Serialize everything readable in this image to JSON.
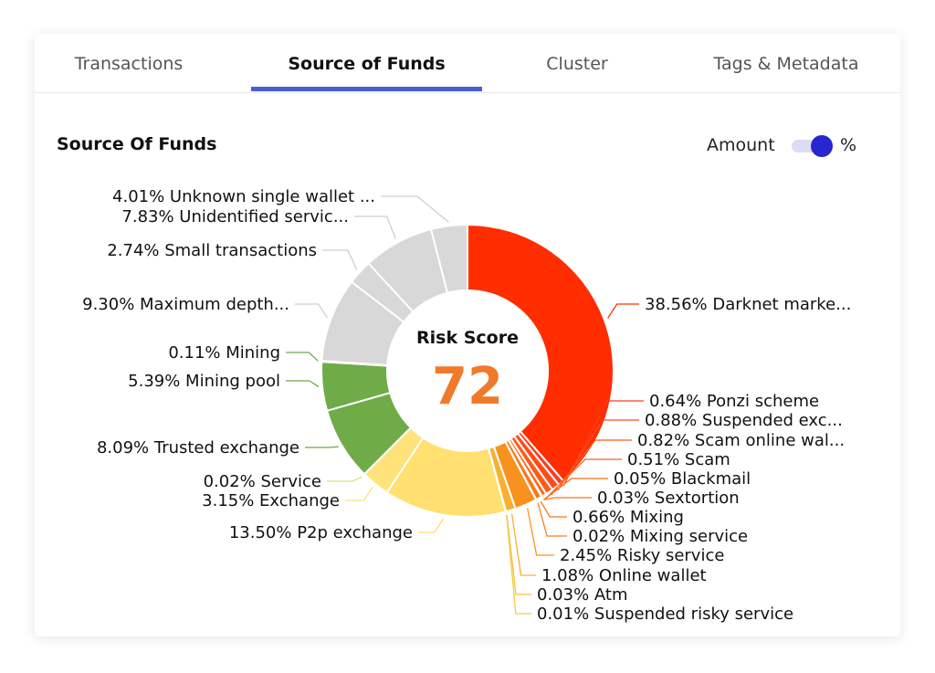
{
  "tabs": [
    {
      "label": "Transactions"
    },
    {
      "label": "Source of Funds"
    },
    {
      "label": "Cluster"
    },
    {
      "label": "Tags & Metadata"
    }
  ],
  "active_tab": "Source of Funds",
  "section_title": "Source Of Funds",
  "toggle": {
    "left_label": "Amount",
    "right_label": "%",
    "state": "%"
  },
  "center": {
    "title": "Risk Score",
    "score": "72"
  },
  "chart_data": {
    "type": "pie",
    "title": "Source Of Funds",
    "center_label": "Risk Score",
    "center_value": 72,
    "slices": [
      {
        "label": "38.56% Darknet marke...",
        "value": 38.56,
        "color": "#ff2d00"
      },
      {
        "label": "0.64% Ponzi scheme",
        "value": 0.64,
        "color": "#ff3b1f"
      },
      {
        "label": "0.88% Suspended exc...",
        "value": 0.88,
        "color": "#ff4a1a"
      },
      {
        "label": "0.82% Scam online wal...",
        "value": 0.82,
        "color": "#ff5a18"
      },
      {
        "label": "0.51% Scam",
        "value": 0.51,
        "color": "#ff6516"
      },
      {
        "label": "0.05% Blackmail",
        "value": 0.05,
        "color": "#ff6c16"
      },
      {
        "label": "0.03% Sextortion",
        "value": 0.03,
        "color": "#ff7216"
      },
      {
        "label": "0.66% Mixing",
        "value": 0.66,
        "color": "#f7781d"
      },
      {
        "label": "0.02% Mixing service",
        "value": 0.02,
        "color": "#f77f1d"
      },
      {
        "label": "2.45% Risky service",
        "value": 2.45,
        "color": "#f7921f"
      },
      {
        "label": "1.08% Online wallet",
        "value": 1.08,
        "color": "#f7b030"
      },
      {
        "label": "0.03% Atm",
        "value": 0.03,
        "color": "#f7c03a"
      },
      {
        "label": "0.01% Suspended risky service",
        "value": 0.01,
        "color": "#f7c83f"
      },
      {
        "label": "13.50% P2p exchange",
        "value": 13.5,
        "color": "#ffe070"
      },
      {
        "label": "3.15% Exchange",
        "value": 3.15,
        "color": "#ffe27a"
      },
      {
        "label": "0.02% Service",
        "value": 0.02,
        "color": "#d9e27a"
      },
      {
        "label": "8.09% Trusted exchange",
        "value": 8.09,
        "color": "#6fab47"
      },
      {
        "label": "5.39% Mining pool",
        "value": 5.39,
        "color": "#6fab47"
      },
      {
        "label": "0.11% Mining",
        "value": 0.11,
        "color": "#6fab47"
      },
      {
        "label": "9.30% Maximum depth...",
        "value": 9.3,
        "color": "#d8d8d8"
      },
      {
        "label": "2.74% Small transactions",
        "value": 2.74,
        "color": "#d8d8d8"
      },
      {
        "label": "7.83% Unidentified servic...",
        "value": 7.83,
        "color": "#d8d8d8"
      },
      {
        "label": "4.01% Unknown single wallet ...",
        "value": 4.01,
        "color": "#d8d8d8"
      }
    ]
  }
}
